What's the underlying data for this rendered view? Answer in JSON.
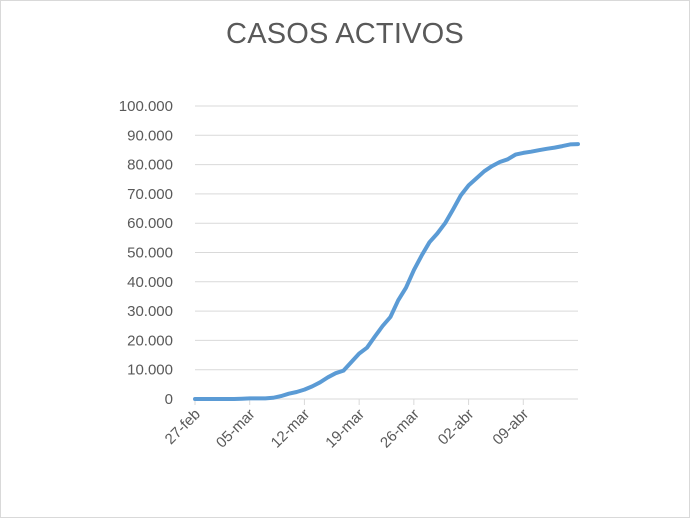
{
  "chart_data": {
    "type": "line",
    "title": "CASOS ACTIVOS",
    "xlabel": "",
    "ylabel": "",
    "ylim": [
      0,
      100000
    ],
    "y_ticks": [
      "0",
      "10.000",
      "20.000",
      "30.000",
      "40.000",
      "50.000",
      "60.000",
      "70.000",
      "80.000",
      "90.000",
      "100.000"
    ],
    "x_ticks": [
      "27-feb",
      "05-mar",
      "12-mar",
      "19-mar",
      "26-mar",
      "02-abr",
      "09-abr"
    ],
    "grid": true,
    "legend": "none",
    "color": "#5b9bd5",
    "series": [
      {
        "x": [
          "27-feb",
          "28-feb",
          "29-feb",
          "01-mar",
          "02-mar",
          "03-mar",
          "04-mar",
          "05-mar",
          "06-mar",
          "07-mar",
          "08-mar",
          "09-mar",
          "10-mar",
          "11-mar",
          "12-mar",
          "13-mar",
          "14-mar",
          "15-mar",
          "16-mar",
          "17-mar",
          "18-mar",
          "19-mar",
          "20-mar",
          "21-mar",
          "22-mar",
          "23-mar",
          "24-mar",
          "25-mar",
          "26-mar",
          "27-mar",
          "28-mar",
          "29-mar",
          "30-mar",
          "31-mar",
          "01-abr",
          "02-abr",
          "03-abr",
          "04-abr",
          "05-abr",
          "06-abr",
          "07-abr",
          "08-abr",
          "09-abr",
          "10-abr",
          "11-abr",
          "12-abr",
          "13-abr",
          "14-abr",
          "15-abr",
          "16-abr"
        ],
        "values": [
          0,
          0,
          0,
          0,
          0,
          0,
          100,
          200,
          200,
          200,
          400,
          1000,
          1800,
          2400,
          3200,
          4300,
          5700,
          7400,
          8800,
          9700,
          12600,
          15500,
          17500,
          21300,
          24900,
          28000,
          33700,
          38000,
          44000,
          49000,
          53500,
          56500,
          60000,
          64600,
          69500,
          72900,
          75300,
          77700,
          79500,
          80900,
          81800,
          83400,
          84000,
          84400,
          84900,
          85400,
          85800,
          86300,
          86900,
          87000
        ]
      }
    ]
  }
}
